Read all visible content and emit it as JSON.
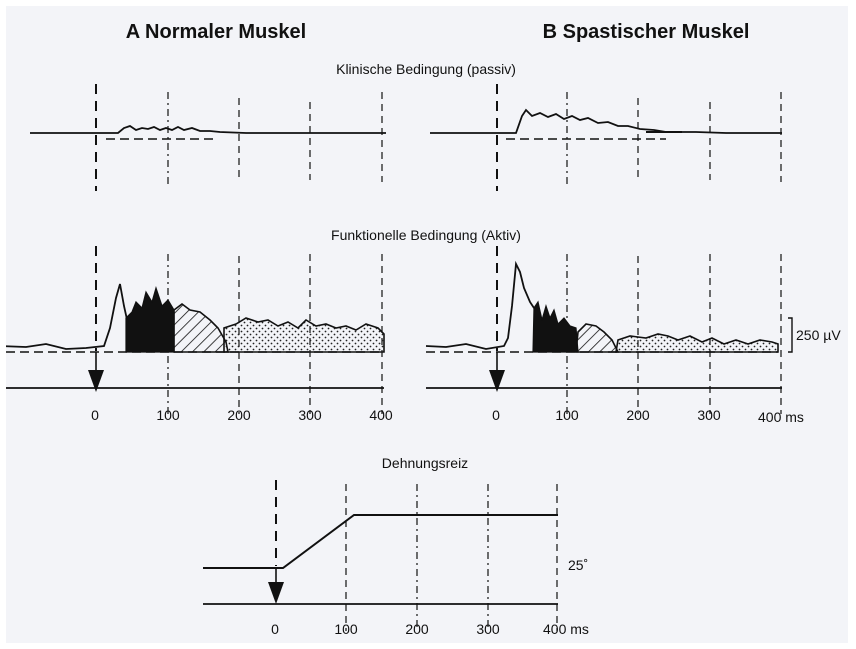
{
  "headers": {
    "a": "A Normaler  Muskel",
    "b": "B Spastischer  Muskel"
  },
  "conditions": {
    "passive": "Klinische Bedingung (passiv)",
    "active": "Funktionelle Bedingung (Aktiv)",
    "stretch": "Dehnungsreiz"
  },
  "scale": {
    "emg": "250 µV",
    "angle": "25˚"
  },
  "axis": {
    "t0": "0",
    "t100": "100",
    "t200": "200",
    "t300": "300",
    "t400": "400",
    "t400ms": "400 ms"
  },
  "legend_colors": {
    "trace": "#111111",
    "background": "#f3f4f8"
  }
}
